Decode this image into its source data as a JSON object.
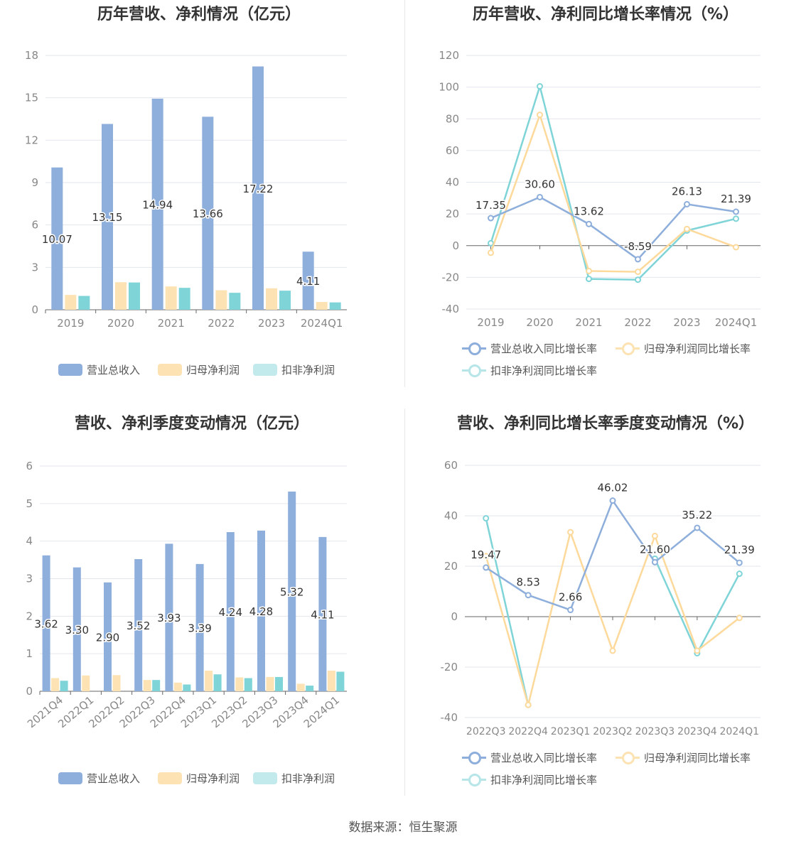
{
  "footer": {
    "source": "数据来源：恒生聚源"
  },
  "colors": {
    "revenue": "#8eaedb",
    "net_profit": "#fde3b4",
    "deducted_profit": "#7fd4d8"
  },
  "chart_data": [
    {
      "id": "annual-bar",
      "type": "bar",
      "title": "历年营收、净利情况（亿元）",
      "categories": [
        "2019",
        "2020",
        "2021",
        "2022",
        "2023",
        "2024Q1"
      ],
      "ylim": [
        0,
        18
      ],
      "yticks": [
        "0",
        "3",
        "6",
        "9",
        "12",
        "15",
        "18"
      ],
      "grid": true,
      "legend_position": "bottom",
      "series": [
        {
          "name": "营业总收入",
          "values": [
            10.07,
            13.15,
            14.94,
            13.66,
            17.22,
            4.11
          ],
          "labels": [
            "10.07",
            "13.15",
            "14.94",
            "13.66",
            "17.22",
            "4.11"
          ]
        },
        {
          "name": "归母净利润",
          "values": [
            1.05,
            1.95,
            1.65,
            1.38,
            1.52,
            0.55
          ]
        },
        {
          "name": "扣非净利润",
          "values": [
            0.98,
            1.93,
            1.55,
            1.2,
            1.35,
            0.52
          ]
        }
      ]
    },
    {
      "id": "annual-line",
      "type": "line",
      "title": "历年营收、净利同比增长率情况（%）",
      "categories": [
        "2019",
        "2020",
        "2021",
        "2022",
        "2023",
        "2024Q1"
      ],
      "ylim": [
        -40,
        120
      ],
      "yticks": [
        "-40",
        "-20",
        "0",
        "20",
        "40",
        "60",
        "80",
        "100",
        "120"
      ],
      "grid": true,
      "legend_position": "bottom",
      "series": [
        {
          "name": "营业总收入同比增长率",
          "values": [
            17.35,
            30.6,
            13.62,
            -8.59,
            26.13,
            21.39
          ],
          "labels": [
            "17.35",
            "30.60",
            "13.62",
            "-8.59",
            "26.13",
            "21.39"
          ]
        },
        {
          "name": "归母净利润同比增长率",
          "values": [
            -4.5,
            82.5,
            -16.0,
            -16.5,
            10.5,
            -1.0
          ]
        },
        {
          "name": "扣非净利润同比增长率",
          "values": [
            1.5,
            100.5,
            -21.0,
            -21.5,
            9.5,
            17.0
          ]
        }
      ]
    },
    {
      "id": "quarter-bar",
      "type": "bar",
      "title": "营收、净利季度变动情况（亿元）",
      "categories": [
        "2021Q4",
        "2022Q1",
        "2022Q2",
        "2022Q3",
        "2022Q4",
        "2023Q1",
        "2023Q2",
        "2023Q3",
        "2023Q4",
        "2024Q1"
      ],
      "ylim": [
        0,
        6
      ],
      "yticks": [
        "0",
        "1",
        "2",
        "3",
        "4",
        "5",
        "6"
      ],
      "grid": true,
      "legend_position": "bottom",
      "series": [
        {
          "name": "营业总收入",
          "values": [
            3.62,
            3.3,
            2.9,
            3.52,
            3.93,
            3.39,
            4.24,
            4.28,
            5.32,
            4.11
          ],
          "labels": [
            "3.62",
            "3.30",
            "2.90",
            "3.52",
            "3.93",
            "3.39",
            "4.24",
            "4.28",
            "5.32",
            "4.11"
          ]
        },
        {
          "name": "归母净利润",
          "values": [
            0.35,
            0.42,
            0.43,
            0.3,
            0.23,
            0.55,
            0.37,
            0.38,
            0.2,
            0.55
          ]
        },
        {
          "name": "扣非净利润",
          "values": [
            0.28,
            0.0,
            0.0,
            0.3,
            0.18,
            0.45,
            0.35,
            0.38,
            0.15,
            0.52
          ]
        }
      ]
    },
    {
      "id": "quarter-line",
      "type": "line",
      "title": "营收、净利同比增长率季度变动情况（%）",
      "categories": [
        "2022Q3",
        "2022Q4",
        "2023Q1",
        "2023Q2",
        "2023Q3",
        "2023Q4",
        "2024Q1"
      ],
      "ylim": [
        -40,
        60
      ],
      "yticks": [
        "-40",
        "-20",
        "0",
        "20",
        "40",
        "60"
      ],
      "grid": true,
      "legend_position": "bottom",
      "series": [
        {
          "name": "营业总收入同比增长率",
          "values": [
            19.47,
            8.53,
            2.66,
            46.02,
            21.6,
            35.22,
            21.39
          ],
          "labels": [
            "19.47",
            "8.53",
            "2.66",
            "46.02",
            "21.60",
            "35.22",
            "21.39"
          ]
        },
        {
          "name": "归母净利润同比增长率",
          "values": [
            24.0,
            -35.0,
            33.5,
            -13.5,
            32.0,
            -13.5,
            -0.5
          ]
        },
        {
          "name": "扣非净利润同比增长率",
          "values": [
            39.0,
            -35.0,
            null,
            null,
            23.0,
            -14.5,
            17.0
          ]
        }
      ]
    }
  ]
}
